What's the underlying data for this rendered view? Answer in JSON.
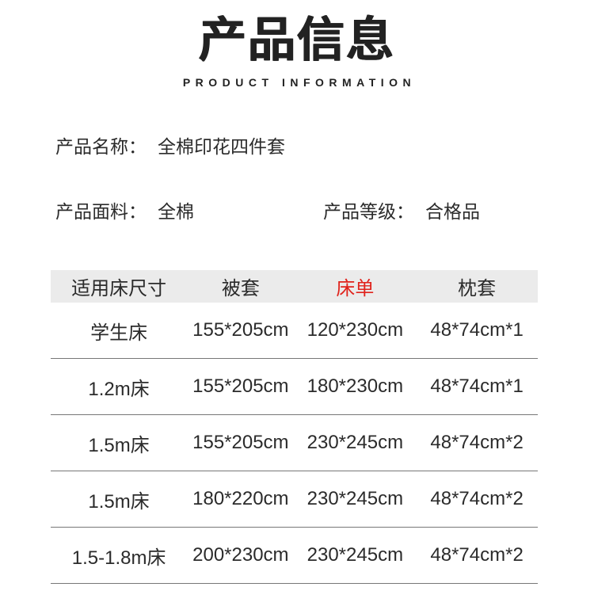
{
  "header": {
    "title": "产品信息",
    "subtitle": "PRODUCT INFORMATION"
  },
  "meta": {
    "name_label": "产品名称：",
    "name_value": "全棉印花四件套",
    "fabric_label": "产品面料：",
    "fabric_value": "全棉",
    "grade_label": "产品等级：",
    "grade_value": "合格品"
  },
  "size_table": {
    "columns": [
      "适用床尺寸",
      "被套",
      "床单",
      "枕套"
    ],
    "highlight_column_index": 2,
    "highlight_color": "#e0231c",
    "header_bg": "#ebebeb",
    "rows": [
      [
        "学生床",
        "155*205cm",
        "120*230cm",
        "48*74cm*1"
      ],
      [
        "1.2m床",
        "155*205cm",
        "180*230cm",
        "48*74cm*1"
      ],
      [
        "1.5m床",
        "155*205cm",
        "230*245cm",
        "48*74cm*2"
      ],
      [
        "1.5m床",
        "180*220cm",
        "230*245cm",
        "48*74cm*2"
      ],
      [
        "1.5-1.8m床",
        "200*230cm",
        "230*245cm",
        "48*74cm*2"
      ]
    ]
  }
}
